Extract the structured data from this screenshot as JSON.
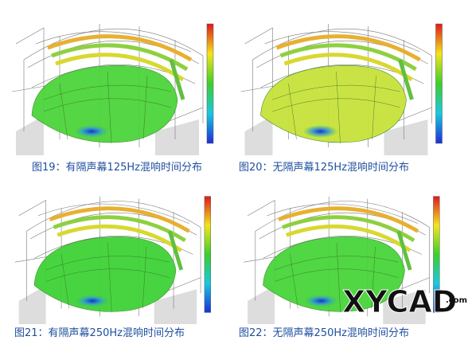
{
  "figures": [
    {
      "caption": "图19：有隔声幕125Hz混响时间分布"
    },
    {
      "caption": "图20：无隔声幕125Hz混响时间分布"
    },
    {
      "caption": "图21：有隔声幕250Hz混响时间分布"
    },
    {
      "caption": "图22：无隔声幕250Hz混响时间分布"
    }
  ],
  "watermark": {
    "text": "XYCAD",
    "suffix": ".com"
  }
}
